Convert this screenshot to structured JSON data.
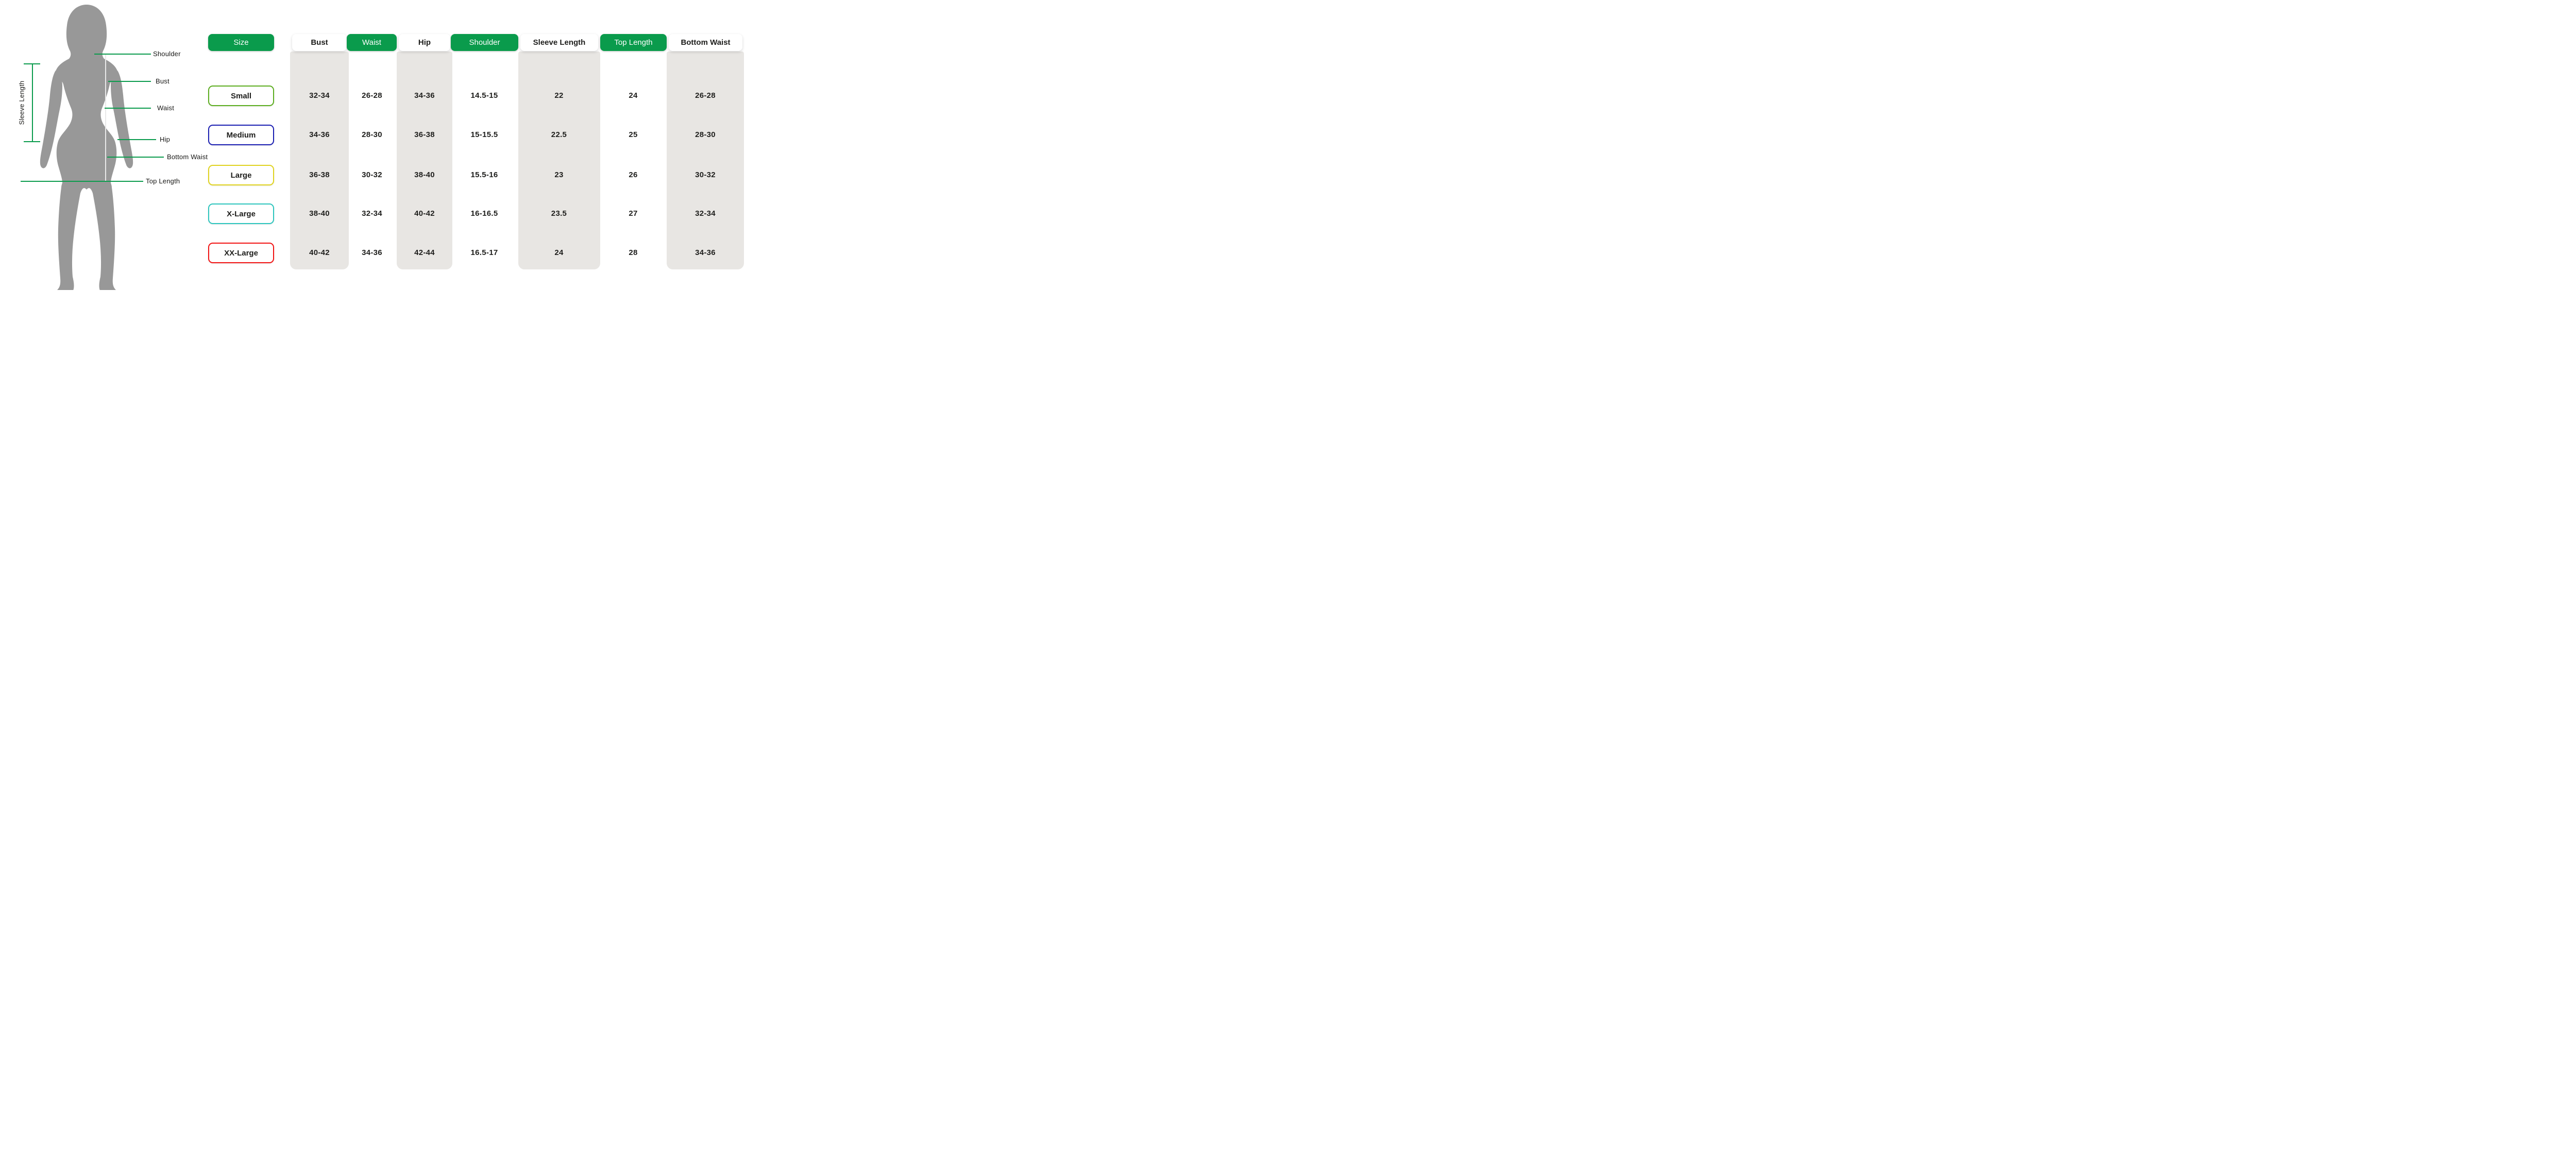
{
  "colors": {
    "header_green": "#0a9b4c",
    "line_green": "#0a9b4c",
    "stripe_gray": "#e8e6e3",
    "silhouette_gray": "#989898",
    "text_dark": "#1d1d1b"
  },
  "figure": {
    "labels": [
      "Shoulder",
      "Bust",
      "Waist",
      "Hip",
      "Bottom Waist",
      "Top Length"
    ],
    "sleeve_label": "Sleeve Length"
  },
  "table": {
    "columns": [
      {
        "label": "Size",
        "style": "green",
        "striped": false
      },
      {
        "label": "Bust",
        "style": "card",
        "striped": true
      },
      {
        "label": "Waist",
        "style": "green",
        "striped": false
      },
      {
        "label": "Hip",
        "style": "card",
        "striped": true
      },
      {
        "label": "Shoulder",
        "style": "green",
        "striped": false
      },
      {
        "label": "Sleeve Length",
        "style": "card",
        "striped": true
      },
      {
        "label": "Top Length",
        "style": "green",
        "striped": false
      },
      {
        "label": "Bottom Waist",
        "style": "card",
        "striped": true
      }
    ],
    "rows": [
      {
        "size": "Small",
        "border_color": "#5cad1f",
        "values": [
          "32-34",
          "26-28",
          "34-36",
          "14.5-15",
          "22",
          "24",
          "26-28"
        ]
      },
      {
        "size": "Medium",
        "border_color": "#1a1eb2",
        "values": [
          "34-36",
          "28-30",
          "36-38",
          "15-15.5",
          "22.5",
          "25",
          "28-30"
        ]
      },
      {
        "size": "Large",
        "border_color": "#e0d31e",
        "values": [
          "36-38",
          "30-32",
          "38-40",
          "15.5-16",
          "23",
          "26",
          "30-32"
        ]
      },
      {
        "size": "X-Large",
        "border_color": "#2cc5bd",
        "values": [
          "38-40",
          "32-34",
          "40-42",
          "16-16.5",
          "23.5",
          "27",
          "32-34"
        ]
      },
      {
        "size": "XX-Large",
        "border_color": "#f21212",
        "values": [
          "40-42",
          "34-36",
          "42-44",
          "16.5-17",
          "24",
          "28",
          "34-36"
        ]
      }
    ]
  }
}
